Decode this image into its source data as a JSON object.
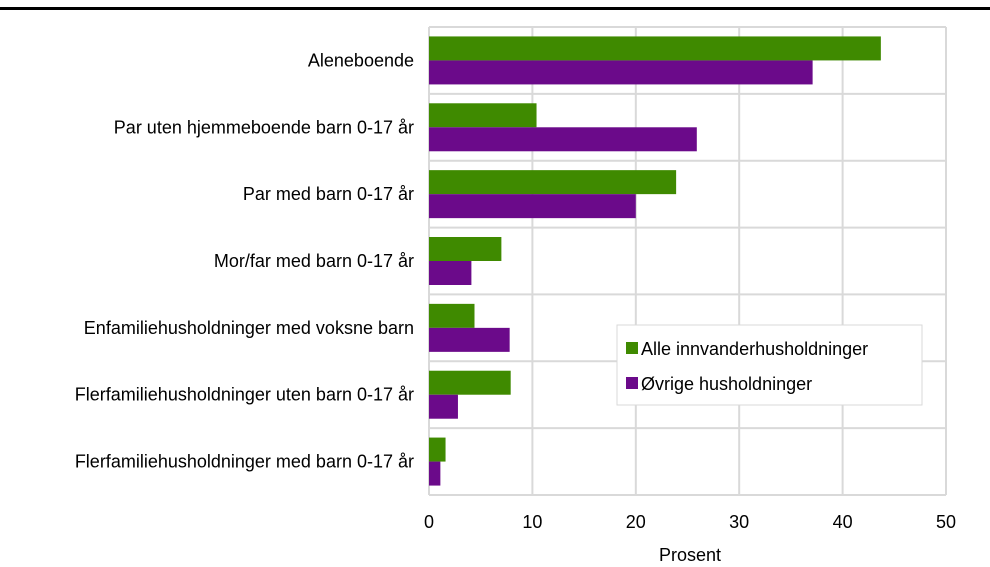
{
  "chart_data": {
    "type": "bar",
    "orientation": "horizontal",
    "title": "",
    "xlabel": "Prosent",
    "ylabel": "",
    "xlim": [
      0,
      50
    ],
    "xticks": [
      0,
      10,
      20,
      30,
      40,
      50
    ],
    "grid": true,
    "legend_position": "bottom-right",
    "categories": [
      "Aleneboende",
      "Par uten hjemmeboende barn 0-17 år",
      "Par med barn 0-17 år",
      "Mor/far med barn 0-17 år",
      "Enfamiliehusholdninger med voksne barn",
      "Flerfamiliehusholdninger uten barn 0-17 år",
      "Flerfamiliehusholdninger med barn 0-17 år"
    ],
    "series": [
      {
        "name": "Alle innvanderhusholdninger",
        "color": "#3f8a00",
        "values": [
          43.7,
          10.4,
          23.9,
          7.0,
          4.4,
          7.9,
          1.6
        ]
      },
      {
        "name": "Øvrige husholdninger",
        "color": "#6b0a8a",
        "values": [
          37.1,
          25.9,
          20.0,
          4.1,
          7.8,
          2.8,
          1.1
        ]
      }
    ]
  }
}
